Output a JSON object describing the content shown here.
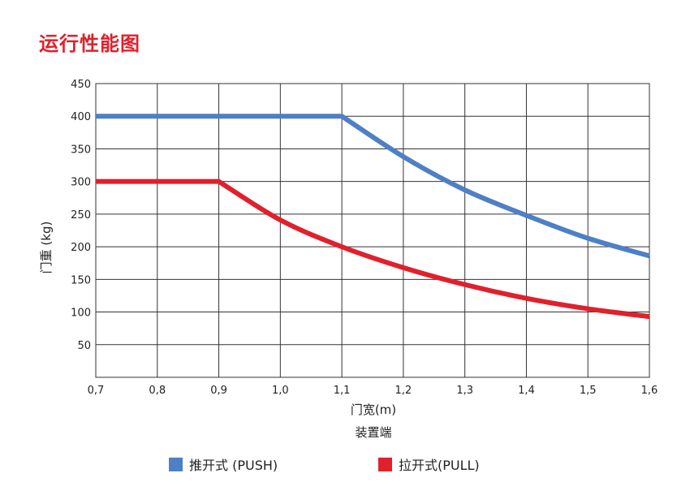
{
  "page": {
    "title": "运行性能图"
  },
  "chart_data": {
    "type": "line",
    "title": "运行性能图",
    "xlabel": "门宽(m)",
    "xlabel_sub": "装置端",
    "ylabel": "门重 (kg)",
    "xlim": [
      0.7,
      1.6
    ],
    "ylim": [
      0,
      450
    ],
    "x_ticks": [
      0.7,
      0.8,
      0.9,
      1.0,
      1.1,
      1.2,
      1.3,
      1.4,
      1.5,
      1.6
    ],
    "x_tick_labels": [
      "0,7",
      "0,8",
      "0,9",
      "1,0",
      "1,1",
      "1,2",
      "1,3",
      "1,4",
      "1,5",
      "1,6"
    ],
    "y_ticks": [
      50,
      100,
      150,
      200,
      250,
      300,
      350,
      400,
      450
    ],
    "y_tick_labels": [
      "50",
      "100",
      "150",
      "200",
      "250",
      "300",
      "350",
      "400",
      "450"
    ],
    "grid": true,
    "legend_position": "bottom",
    "series": [
      {
        "name": "推开式 (PUSH)",
        "color": "#4f7fc5",
        "x": [
          0.7,
          0.8,
          0.9,
          1.0,
          1.1,
          1.2,
          1.3,
          1.4,
          1.5,
          1.6
        ],
        "y": [
          400,
          400,
          400,
          400,
          400,
          338,
          287,
          248,
          213,
          186
        ]
      },
      {
        "name": "拉开式(PULL)",
        "color": "#e0202c",
        "x": [
          0.7,
          0.8,
          0.9,
          1.0,
          1.1,
          1.2,
          1.3,
          1.4,
          1.5,
          1.6
        ],
        "y": [
          300,
          300,
          300,
          241,
          200,
          168,
          142,
          121,
          105,
          93
        ]
      }
    ]
  }
}
